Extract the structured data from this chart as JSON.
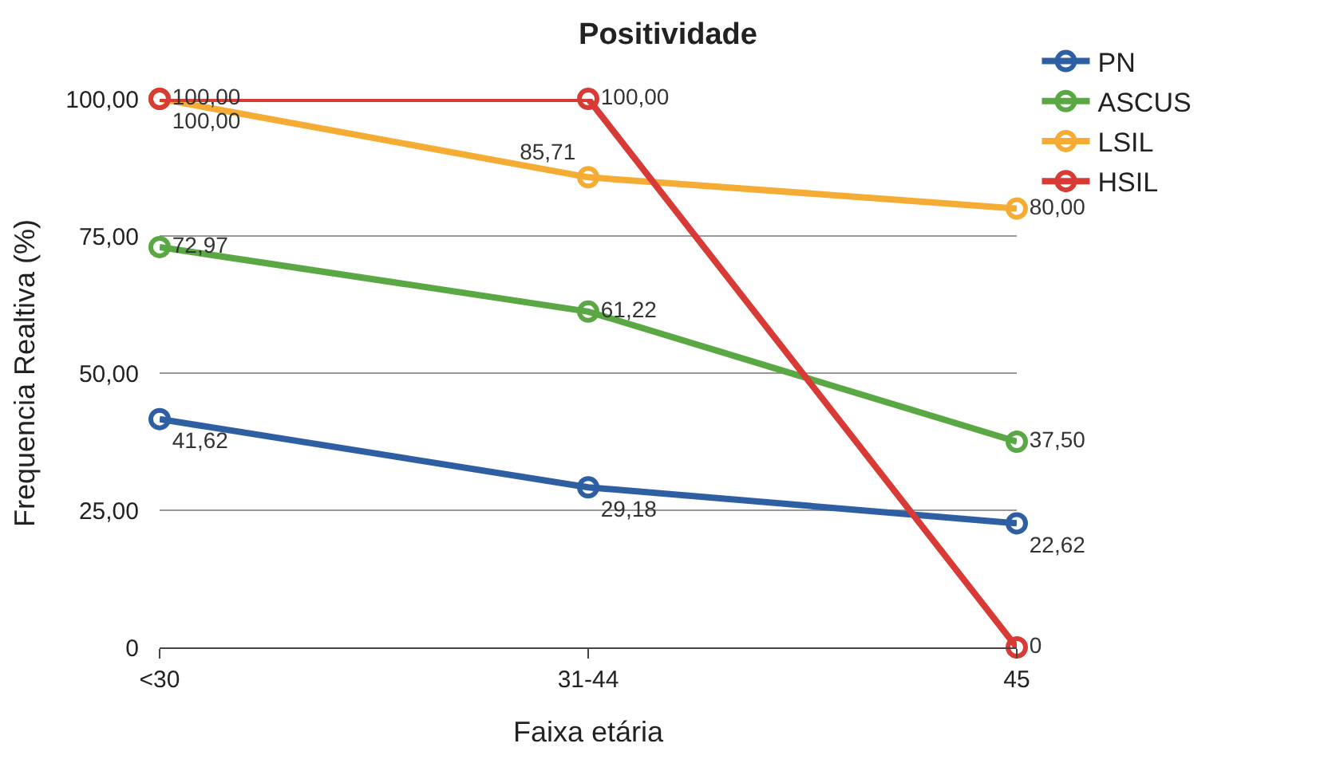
{
  "chart_data": {
    "type": "line",
    "title": "Positividade",
    "xlabel": "Faixa etária",
    "ylabel": "Frequencia Realtiva (%)",
    "categories": [
      "<30",
      "31-44",
      "45"
    ],
    "series": [
      {
        "name": "PN",
        "color": "#2e5fa3",
        "values": [
          41.62,
          29.18,
          22.62
        ],
        "value_labels": [
          "41,62",
          "29,18",
          "22,62"
        ]
      },
      {
        "name": "ASCUS",
        "color": "#5aa843",
        "values": [
          72.97,
          61.22,
          37.5
        ],
        "value_labels": [
          "72,97",
          "61,22",
          "37,50"
        ]
      },
      {
        "name": "LSIL",
        "color": "#f5ac34",
        "values": [
          100,
          85.71,
          80
        ],
        "value_labels": [
          "100,00",
          "85,71",
          "80,00"
        ]
      },
      {
        "name": "HSIL",
        "color": "#d83a36",
        "values": [
          100,
          100,
          0
        ],
        "value_labels": [
          "100,00",
          "100,00",
          "0"
        ]
      }
    ],
    "ylim": [
      0,
      100
    ],
    "yticks": [
      0,
      {
        "value": 25,
        "label": "25,00"
      },
      {
        "value": 50,
        "label": "50,00"
      },
      {
        "value": 75,
        "label": "75,00"
      },
      {
        "value": 100,
        "label": "100,00"
      }
    ],
    "grid": "y",
    "legend": "top right",
    "marker": "circle",
    "line_style": "solid"
  }
}
